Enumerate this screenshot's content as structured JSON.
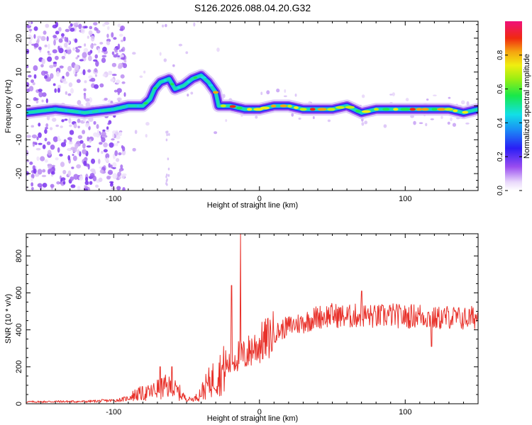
{
  "figure_title": "S126.2026.088.04.20.G32",
  "colors": {
    "snr_line": "#e8312a",
    "frame": "#000000",
    "background": "#ffffff"
  },
  "chart_data": [
    {
      "type": "heatmap",
      "name": "spectrogram",
      "title": "S126.2026.088.04.20.G32",
      "xlabel": "Height of straight line (km)",
      "ylabel": "Frequency (Hz)",
      "xlim": [
        -160,
        150
      ],
      "ylim": [
        -25,
        25
      ],
      "x_ticks": [
        -100,
        0,
        100
      ],
      "x_tick_labels": [
        "-100",
        "0",
        "100"
      ],
      "y_ticks": [
        -20,
        -10,
        0,
        10,
        20
      ],
      "y_tick_labels": [
        "-20",
        "-10",
        "0",
        "10",
        "20"
      ],
      "grid": false,
      "colormap": "rainbow (purple-blue-cyan-green-yellow-red-magenta)",
      "colorbar": {
        "label": "Normalized spectral amplitude",
        "range": [
          0,
          1
        ],
        "ticks": [
          0.0,
          0.2,
          0.4,
          0.6,
          0.8
        ],
        "tick_labels": [
          "0.0",
          "0.2",
          "0.4",
          "0.6",
          "0.8"
        ]
      },
      "ridge": {
        "description": "dominant frequency trace vs height",
        "x": [
          -160,
          -140,
          -120,
          -100,
          -90,
          -80,
          -75,
          -72,
          -68,
          -62,
          -58,
          -52,
          -46,
          -40,
          -35,
          -30,
          -28,
          -25,
          -20,
          -10,
          0,
          10,
          20,
          30,
          40,
          50,
          60,
          70,
          80,
          90,
          100,
          110,
          120,
          130,
          140,
          150
        ],
        "y": [
          -2,
          -1,
          -2,
          -1,
          0,
          0,
          2,
          5,
          7,
          8,
          5,
          6,
          8,
          9,
          7,
          4,
          0,
          0,
          0,
          -1,
          -1,
          0,
          0,
          -1,
          -1,
          -1,
          0,
          -2,
          -1,
          -1,
          -1,
          -1,
          -1,
          -1,
          -2,
          -1
        ]
      },
      "scatter_noise_region": [
        -160,
        -100
      ]
    },
    {
      "type": "line",
      "name": "snr",
      "xlabel": "Height of straight line (km)",
      "ylabel": "SNR (10 * v/v)",
      "xlim": [
        -160,
        150
      ],
      "ylim": [
        0,
        920
      ],
      "x_ticks": [
        -100,
        0,
        100
      ],
      "x_tick_labels": [
        "-100",
        "0",
        "100"
      ],
      "y_ticks": [
        0,
        200,
        400,
        600,
        800
      ],
      "y_tick_labels": [
        "0",
        "200",
        "400",
        "600",
        "800"
      ],
      "grid": false,
      "series": [
        {
          "name": "SNR",
          "color": "#e8312a",
          "x": [
            -160,
            -140,
            -120,
            -100,
            -95,
            -90,
            -85,
            -80,
            -75,
            -70,
            -65,
            -60,
            -55,
            -50,
            -45,
            -40,
            -35,
            -30,
            -25,
            -20,
            -15,
            -10,
            -5,
            0,
            10,
            20,
            30,
            40,
            50,
            60,
            70,
            80,
            90,
            100,
            110,
            120,
            130,
            140,
            150
          ],
          "y": [
            10,
            12,
            12,
            18,
            22,
            30,
            50,
            55,
            60,
            80,
            90,
            85,
            60,
            25,
            25,
            60,
            110,
            150,
            180,
            220,
            260,
            260,
            300,
            320,
            380,
            420,
            440,
            470,
            480,
            470,
            480,
            470,
            480,
            470,
            480,
            460,
            470,
            460,
            470
          ]
        }
      ],
      "spikes": [
        {
          "x": -13,
          "y": 920
        },
        {
          "x": -19,
          "y": 640
        },
        {
          "x": -68,
          "y": 200
        },
        {
          "x": -60,
          "y": 200
        },
        {
          "x": 70,
          "y": 610
        },
        {
          "x": 118,
          "y": 310
        }
      ]
    }
  ]
}
